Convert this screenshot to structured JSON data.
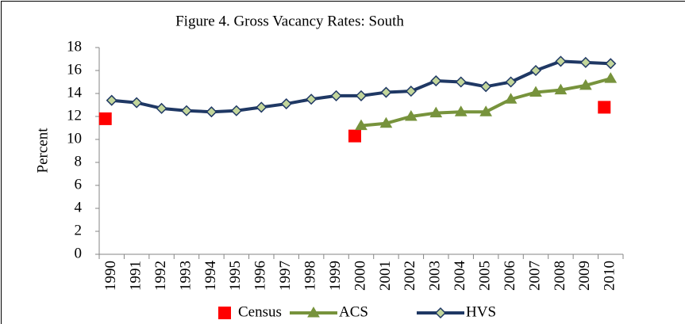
{
  "chart_data": {
    "type": "line",
    "title": "Figure 4.  Gross Vacancy Rates:  South",
    "y_label": "Percent",
    "categories": [
      "1990",
      "1991",
      "1992",
      "1993",
      "1994",
      "1995",
      "1996",
      "1997",
      "1998",
      "1999",
      "2000",
      "2001",
      "2002",
      "2003",
      "2004",
      "2005",
      "2006",
      "2007",
      "2008",
      "2009",
      "2010"
    ],
    "series": [
      {
        "name": "Census",
        "color": "#ff0000",
        "marker": "square",
        "line": false,
        "values": [
          11.8,
          null,
          null,
          null,
          null,
          null,
          null,
          null,
          null,
          null,
          10.3,
          null,
          null,
          null,
          null,
          null,
          null,
          null,
          null,
          null,
          12.8
        ]
      },
      {
        "name": "ACS",
        "color": "#77933c",
        "marker": "triangle",
        "line": true,
        "values": [
          null,
          null,
          null,
          null,
          null,
          null,
          null,
          null,
          null,
          null,
          11.2,
          11.4,
          12.0,
          12.3,
          12.4,
          12.4,
          13.5,
          14.1,
          14.3,
          14.7,
          15.3
        ]
      },
      {
        "name": "HVS",
        "color": "#1f3864",
        "marker": "diamond",
        "line": true,
        "values": [
          13.4,
          13.2,
          12.7,
          12.5,
          12.4,
          12.5,
          12.8,
          13.1,
          13.5,
          13.8,
          13.8,
          14.1,
          14.2,
          15.1,
          15.0,
          14.6,
          15.0,
          16.0,
          16.8,
          16.7,
          16.6
        ]
      }
    ],
    "ylim": [
      0,
      18
    ],
    "yticks": [
      0,
      2,
      4,
      6,
      8,
      10,
      12,
      14,
      16,
      18
    ],
    "grid": false,
    "legend": "bottom"
  }
}
